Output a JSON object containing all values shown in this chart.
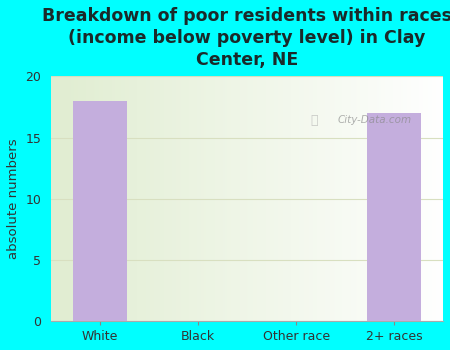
{
  "title": "Breakdown of poor residents within races\n(income below poverty level) in Clay\nCenter, NE",
  "categories": [
    "White",
    "Black",
    "Other race",
    "2+ races"
  ],
  "values": [
    18,
    0,
    0,
    17
  ],
  "bar_color": "#c4aedd",
  "ylabel": "absolute numbers",
  "ylim": [
    0,
    20
  ],
  "yticks": [
    0,
    5,
    10,
    15,
    20
  ],
  "bg_outer": "#00ffff",
  "title_color": "#1a2a2a",
  "title_fontsize": 12.5,
  "axis_label_fontsize": 9.5,
  "tick_fontsize": 9,
  "watermark": "City-Data.com"
}
